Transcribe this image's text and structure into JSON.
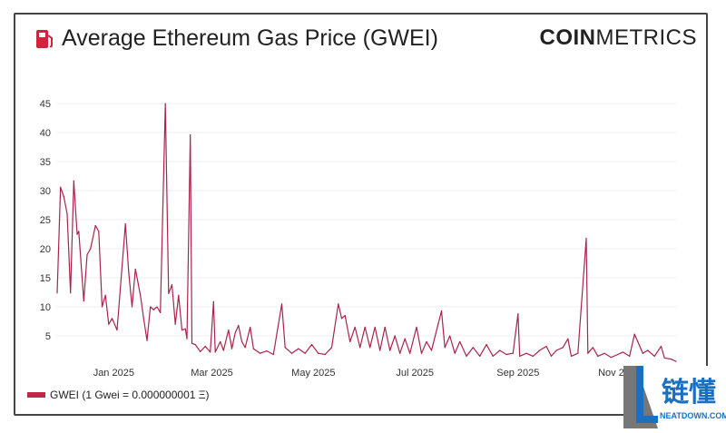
{
  "header": {
    "title": "Average Ethereum Gas Price (GWEI)",
    "title_icon": "gas-pump-icon",
    "brand_bold": "COIN",
    "brand_light": "METRICS"
  },
  "watermark": {
    "text_cn": "链懂",
    "text_en": "NEATDOWN.COM"
  },
  "chart_data": {
    "type": "line",
    "title": "Average Ethereum Gas Price (GWEI)",
    "xlabel": "",
    "ylabel": "",
    "ylim": [
      0,
      48
    ],
    "xlim": [
      "2024-11-28",
      "2025-12-05"
    ],
    "yticks": [
      5,
      10,
      15,
      20,
      25,
      30,
      35,
      40,
      45
    ],
    "xticks": [
      {
        "date": "2025-01-01",
        "label": "Jan 2025"
      },
      {
        "date": "2025-03-01",
        "label": "Mar 2025"
      },
      {
        "date": "2025-05-01",
        "label": "May 2025"
      },
      {
        "date": "2025-07-01",
        "label": "Jul 2025"
      },
      {
        "date": "2025-09-01",
        "label": "Sep 2025"
      },
      {
        "date": "2025-11-01",
        "label": "Nov 2025"
      }
    ],
    "grid": true,
    "legend_position": "bottom-left",
    "color": "#a8244a",
    "series": [
      {
        "name": "GWEI (1 Gwei = 0.000000001 Ξ)",
        "points": [
          [
            "2024-11-28",
            12.4
          ],
          [
            "2024-11-30",
            30.6
          ],
          [
            "2024-12-02",
            29
          ],
          [
            "2024-12-04",
            26
          ],
          [
            "2024-12-06",
            12.4
          ],
          [
            "2024-12-08",
            31.7
          ],
          [
            "2024-12-10",
            22.5
          ],
          [
            "2024-12-11",
            23
          ],
          [
            "2024-12-14",
            11
          ],
          [
            "2024-12-16",
            19
          ],
          [
            "2024-12-18",
            20
          ],
          [
            "2024-12-21",
            24
          ],
          [
            "2024-12-23",
            23
          ],
          [
            "2024-12-25",
            10
          ],
          [
            "2024-12-27",
            12
          ],
          [
            "2024-12-29",
            7
          ],
          [
            "2024-12-31",
            8
          ],
          [
            "2025-01-03",
            6
          ],
          [
            "2025-01-08",
            24.3
          ],
          [
            "2025-01-10",
            16
          ],
          [
            "2025-01-12",
            10
          ],
          [
            "2025-01-14",
            16.5
          ],
          [
            "2025-01-17",
            12
          ],
          [
            "2025-01-19",
            8
          ],
          [
            "2025-01-21",
            4.2
          ],
          [
            "2025-01-23",
            10
          ],
          [
            "2025-01-25",
            9.5
          ],
          [
            "2025-01-27",
            10
          ],
          [
            "2025-01-29",
            9
          ],
          [
            "2025-02-01",
            45
          ],
          [
            "2025-02-03",
            12.3
          ],
          [
            "2025-02-05",
            13.8
          ],
          [
            "2025-02-07",
            7
          ],
          [
            "2025-02-09",
            12
          ],
          [
            "2025-02-11",
            6
          ],
          [
            "2025-02-13",
            6.2
          ],
          [
            "2025-02-14",
            4.5
          ],
          [
            "2025-02-16",
            39.6
          ],
          [
            "2025-02-17",
            3.7
          ],
          [
            "2025-02-19",
            3.5
          ],
          [
            "2025-02-22",
            2.3
          ],
          [
            "2025-02-25",
            3.2
          ],
          [
            "2025-02-28",
            2.2
          ],
          [
            "2025-03-02",
            10.9
          ],
          [
            "2025-03-03",
            2.2
          ],
          [
            "2025-03-06",
            4
          ],
          [
            "2025-03-08",
            2.5
          ],
          [
            "2025-03-11",
            6
          ],
          [
            "2025-03-13",
            2.8
          ],
          [
            "2025-03-15",
            5.5
          ],
          [
            "2025-03-17",
            6.8
          ],
          [
            "2025-03-19",
            4
          ],
          [
            "2025-03-21",
            3
          ],
          [
            "2025-03-24",
            6.5
          ],
          [
            "2025-03-26",
            2.8
          ],
          [
            "2025-03-30",
            2
          ],
          [
            "2025-04-03",
            2.4
          ],
          [
            "2025-04-07",
            1.8
          ],
          [
            "2025-04-12",
            10.5
          ],
          [
            "2025-04-14",
            3
          ],
          [
            "2025-04-18",
            2
          ],
          [
            "2025-04-22",
            2.8
          ],
          [
            "2025-04-26",
            2
          ],
          [
            "2025-04-30",
            3.5
          ],
          [
            "2025-05-04",
            2
          ],
          [
            "2025-05-08",
            1.8
          ],
          [
            "2025-05-12",
            3
          ],
          [
            "2025-05-16",
            10.5
          ],
          [
            "2025-05-18",
            8
          ],
          [
            "2025-05-20",
            8.5
          ],
          [
            "2025-05-23",
            4
          ],
          [
            "2025-05-26",
            6.5
          ],
          [
            "2025-05-29",
            3
          ],
          [
            "2025-06-01",
            6.5
          ],
          [
            "2025-06-04",
            3
          ],
          [
            "2025-06-07",
            6.5
          ],
          [
            "2025-06-10",
            2.5
          ],
          [
            "2025-06-13",
            6.5
          ],
          [
            "2025-06-16",
            2.5
          ],
          [
            "2025-06-19",
            5
          ],
          [
            "2025-06-22",
            2
          ],
          [
            "2025-06-25",
            4.5
          ],
          [
            "2025-06-28",
            2
          ],
          [
            "2025-07-02",
            6.5
          ],
          [
            "2025-07-05",
            2
          ],
          [
            "2025-07-08",
            4
          ],
          [
            "2025-07-11",
            2.5
          ],
          [
            "2025-07-15",
            7
          ],
          [
            "2025-07-17",
            9.3
          ],
          [
            "2025-07-19",
            3
          ],
          [
            "2025-07-22",
            5
          ],
          [
            "2025-07-25",
            2
          ],
          [
            "2025-07-28",
            4
          ],
          [
            "2025-08-01",
            1.5
          ],
          [
            "2025-08-05",
            3
          ],
          [
            "2025-08-09",
            1.5
          ],
          [
            "2025-08-13",
            3.5
          ],
          [
            "2025-08-17",
            1.5
          ],
          [
            "2025-08-21",
            2.5
          ],
          [
            "2025-08-25",
            1.8
          ],
          [
            "2025-08-29",
            2
          ],
          [
            "2025-09-01",
            8.8
          ],
          [
            "2025-09-02",
            1.5
          ],
          [
            "2025-09-06",
            2
          ],
          [
            "2025-09-10",
            1.5
          ],
          [
            "2025-09-14",
            2.5
          ],
          [
            "2025-09-18",
            3.2
          ],
          [
            "2025-09-21",
            1.5
          ],
          [
            "2025-09-24",
            2.5
          ],
          [
            "2025-09-28",
            3
          ],
          [
            "2025-10-01",
            4.5
          ],
          [
            "2025-10-03",
            1.5
          ],
          [
            "2025-10-07",
            2
          ],
          [
            "2025-10-12",
            21.8
          ],
          [
            "2025-10-13",
            2
          ],
          [
            "2025-10-16",
            3
          ],
          [
            "2025-10-19",
            1.5
          ],
          [
            "2025-10-23",
            2
          ],
          [
            "2025-10-27",
            1.3
          ],
          [
            "2025-10-31",
            1.8
          ],
          [
            "2025-11-03",
            2.2
          ],
          [
            "2025-11-07",
            1.5
          ],
          [
            "2025-11-10",
            5.3
          ],
          [
            "2025-11-12",
            4
          ],
          [
            "2025-11-15",
            2
          ],
          [
            "2025-11-18",
            2.5
          ],
          [
            "2025-11-22",
            1.5
          ],
          [
            "2025-11-26",
            3.2
          ],
          [
            "2025-11-28",
            1.2
          ],
          [
            "2025-12-02",
            1
          ],
          [
            "2025-12-05",
            0.6
          ]
        ]
      }
    ]
  }
}
